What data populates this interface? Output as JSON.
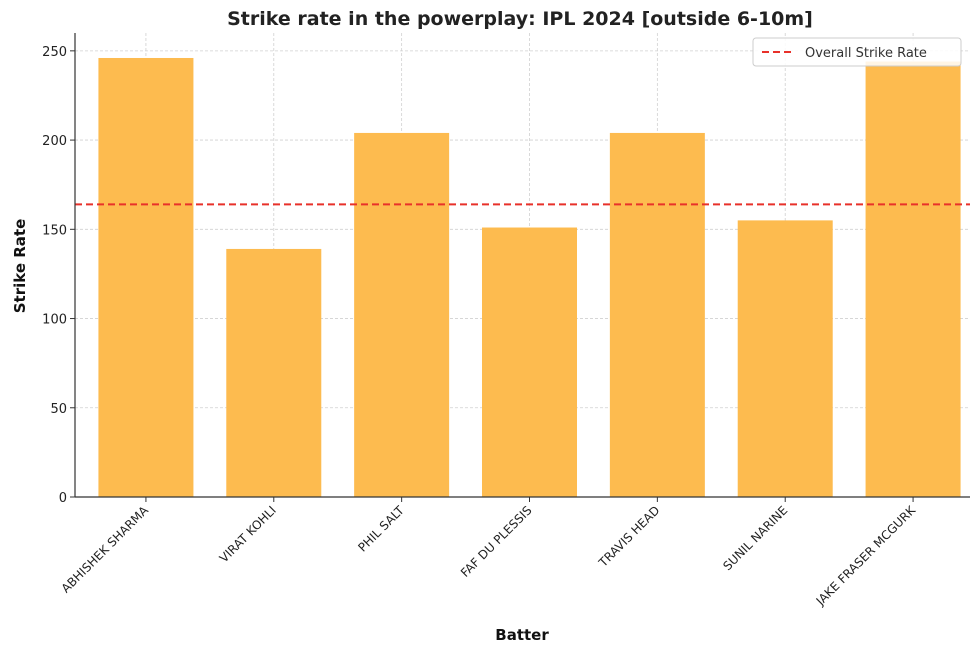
{
  "chart_data": {
    "type": "bar",
    "title": "Strike rate in the powerplay: IPL 2024 [outside 6-10m]",
    "xlabel": "Batter",
    "ylabel": "Strike Rate",
    "categories": [
      "ABHISHEK SHARMA",
      "VIRAT KOHLI",
      "PHIL SALT",
      "FAF DU PLESSIS",
      "TRAVIS HEAD",
      "SUNIL NARINE",
      "JAKE FRASER MCGURK"
    ],
    "values": [
      246,
      139,
      204,
      151,
      204,
      155,
      244
    ],
    "ylim": [
      0,
      260
    ],
    "yticks": [
      0,
      50,
      100,
      150,
      200,
      250
    ],
    "bar_color": "#FDBB4F",
    "grid": true,
    "reference_line": {
      "label": "Overall Strike Rate",
      "value": 164,
      "color": "#E8312A",
      "style": "dashed"
    },
    "legend": {
      "position": "top-right",
      "entries": [
        "Overall Strike Rate"
      ]
    }
  }
}
